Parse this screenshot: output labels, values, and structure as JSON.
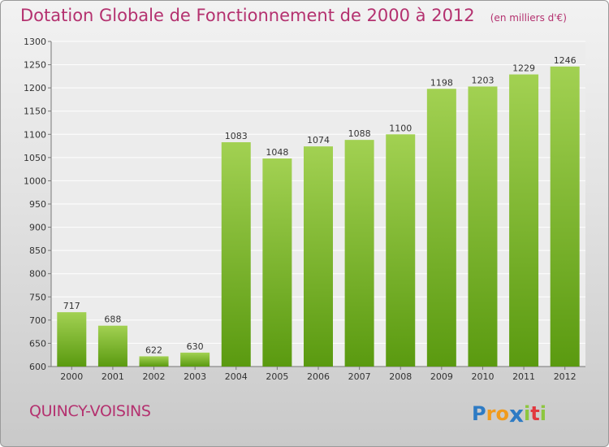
{
  "header": {
    "title": "Dotation Globale de Fonctionnement de 2000 à 2012",
    "subtitle": "(en milliers d'€)"
  },
  "footer": {
    "city": "QUINCY-VOISINS",
    "logo": "Proxiti",
    "logo_letters": [
      {
        "ch": "P",
        "color": "#2e7bc4"
      },
      {
        "ch": "r",
        "color": "#f19b1d"
      },
      {
        "ch": "o",
        "color": "#f19b1d"
      },
      {
        "ch": "x",
        "color": "#2e7bc4"
      },
      {
        "ch": "i",
        "color": "#8dc63f"
      },
      {
        "ch": "t",
        "color": "#e2383f"
      },
      {
        "ch": "i",
        "color": "#8dc63f"
      }
    ]
  },
  "colors": {
    "bar_top": "#a2d152",
    "bar_bottom": "#5a9a10",
    "title": "#b4316f"
  },
  "chart_data": {
    "type": "bar",
    "categories": [
      "2000",
      "2001",
      "2002",
      "2003",
      "2004",
      "2005",
      "2006",
      "2007",
      "2008",
      "2009",
      "2010",
      "2011",
      "2012"
    ],
    "values": [
      717,
      688,
      622,
      630,
      1083,
      1048,
      1074,
      1088,
      1100,
      1198,
      1203,
      1229,
      1246
    ],
    "ylim": [
      600,
      1300
    ],
    "yticks": [
      600,
      650,
      700,
      750,
      800,
      850,
      900,
      950,
      1000,
      1050,
      1100,
      1150,
      1200,
      1250,
      1300
    ],
    "grid": true,
    "data_labels": true
  }
}
